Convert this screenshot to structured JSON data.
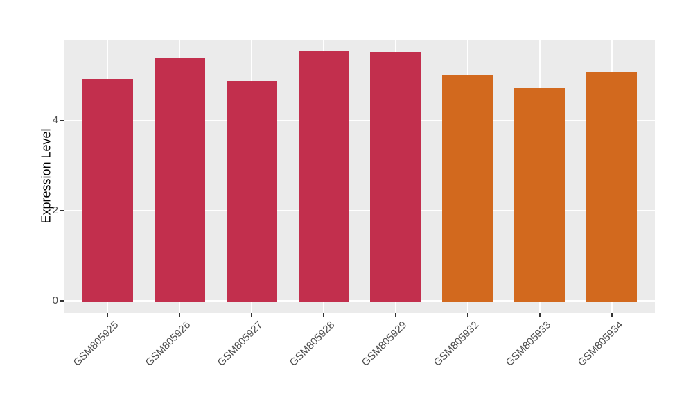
{
  "chart_data": {
    "type": "bar",
    "title": "",
    "xlabel": "",
    "ylabel": "Expression Level",
    "categories": [
      "GSM805925",
      "GSM805926",
      "GSM805927",
      "GSM805928",
      "GSM805929",
      "GSM805932",
      "GSM805933",
      "GSM805934"
    ],
    "values": [
      4.92,
      5.4,
      4.88,
      5.54,
      5.52,
      5.02,
      4.72,
      5.08
    ],
    "bar_colors": [
      "#C22F4D",
      "#C22F4D",
      "#C22F4D",
      "#C22F4D",
      "#C22F4D",
      "#D2691E",
      "#D2691E",
      "#D2691E"
    ],
    "yticks": [
      0,
      2,
      4
    ],
    "minor_yticks": [
      1,
      3,
      5
    ],
    "ylim": [
      -0.28,
      5.8
    ],
    "x_tick_angle_deg": 45,
    "grid": true,
    "legend_position": "none",
    "style": {
      "panel_background": "#EBEBEB",
      "grid_color": "#FFFFFF",
      "tick_mark_color": "#333333",
      "tick_label_color": "#4D4D4D",
      "axis_title_color": "#000000",
      "figure_background": "#FFFFFF"
    }
  }
}
